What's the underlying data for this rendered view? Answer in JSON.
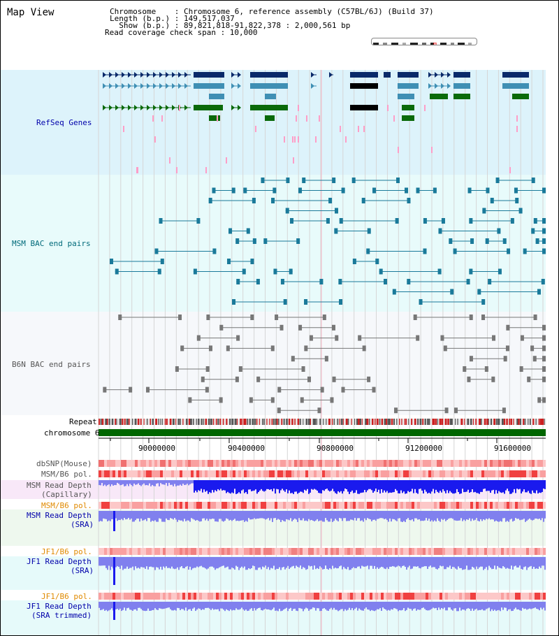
{
  "view_title": "Map View",
  "header": {
    "line1": "Chromosome    : Chromosome 6, reference assembly (C57BL/6J) (Build 37)",
    "line2": "Length (b.p.) : 149,517,037",
    "line3": "  Show (b.p.) : 89,821,818-91,822,378 : 2,000,561 bp",
    "line4": "Read coverage check span : 10,000"
  },
  "tracks": {
    "refseq": "RefSeq Genes",
    "msm_bac": "MSM BAC end pairs",
    "b6n_bac": "B6N BAC end pairs",
    "repeat": "Repeat",
    "chromosome": "chromosome 6",
    "dbsnp": "dbSNP(Mouse)",
    "msm_b6_pol": "MSM/B6 pol.",
    "msm_rd_cap_1": "MSM Read Depth",
    "msm_rd_cap_2": "(Capillary)",
    "msm_b6_pol_sra": "MSM/B6 pol.",
    "msm_rd_sra_1": "MSM Read Depth",
    "msm_rd_sra_2": "(SRA)",
    "jf1_b6_pol": "JF1/B6 pol.",
    "jf1_rd_sra_1": "JF1 Read Depth",
    "jf1_rd_sra_2": "(SRA)",
    "jf1_b6_pol_2": "JF1/B6 pol.",
    "jf1_rd_trim_1": "JF1 Read Depth",
    "jf1_rd_trim_2": "(SRA trimmed)"
  },
  "axis_ticks": [
    "90000000",
    "90400000",
    "90800000",
    "91200000",
    "91600000"
  ],
  "colors": {
    "refseq_bg": "#ddf3fb",
    "bac_bg": "#e8fbfb",
    "b6n_bg": "#f6f8fb",
    "gene_dark": "#0a2a6a",
    "gene_mid": "#3f8fb4",
    "gene_green": "#0a6a0a",
    "snp_pink": "#ff9ec7",
    "repeat_red": "#cc2020",
    "chrom_green": "#006600",
    "depth_blue": "#1a1aee",
    "depth_light": "#8080ee",
    "pol_red": "#f04040"
  }
}
